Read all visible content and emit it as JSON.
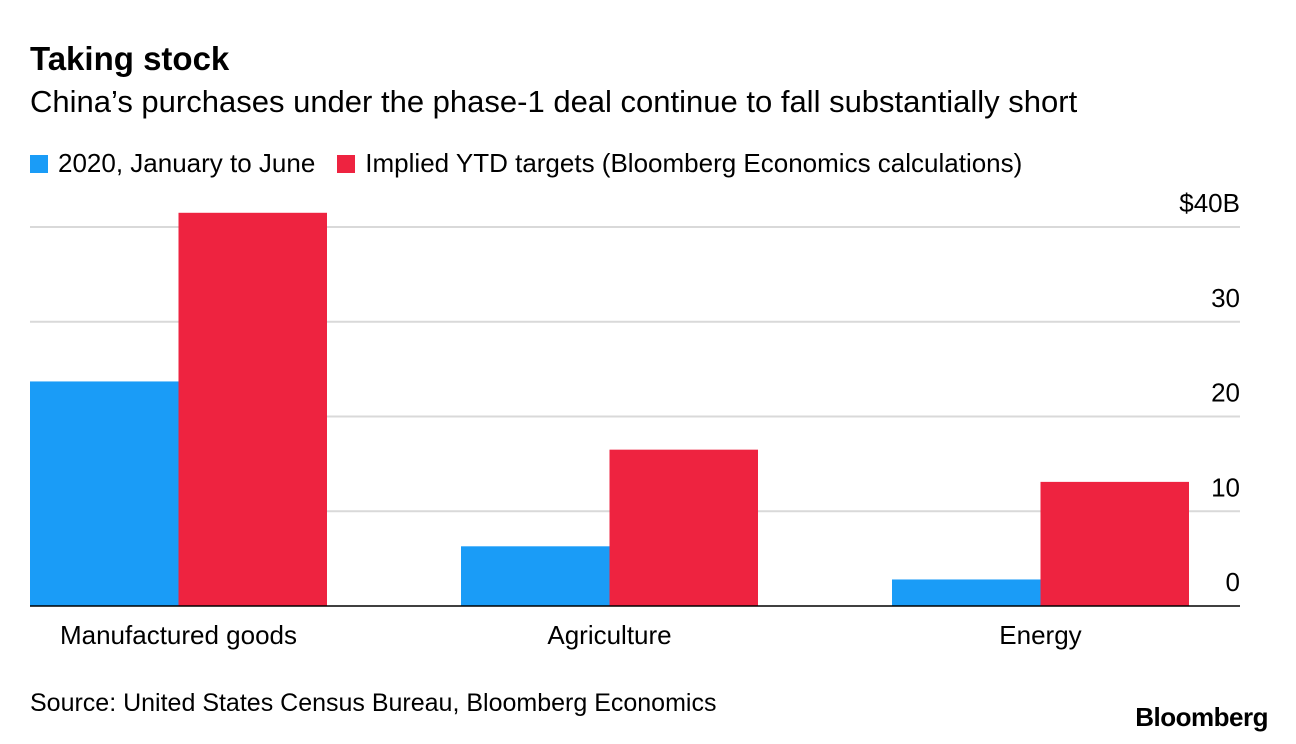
{
  "title": "Taking stock",
  "subtitle": "China’s purchases under the phase-1 deal continue to fall substantially short",
  "source": "Source: United States Census Bureau, Bloomberg Economics",
  "logo": "Bloomberg",
  "chart_data": {
    "type": "bar",
    "categories": [
      "Manufactured goods",
      "Agriculture",
      "Energy"
    ],
    "series": [
      {
        "name": "2020, January to June",
        "color": "#1a9cf7",
        "values": [
          23.7,
          6.3,
          2.8
        ]
      },
      {
        "name": "Implied YTD targets (Bloomberg Economics calculations)",
        "color": "#ee2340",
        "values": [
          41.5,
          16.5,
          13.1
        ]
      }
    ],
    "ylim": [
      0,
      40
    ],
    "yticks": [
      0,
      10,
      20,
      30,
      40
    ],
    "ytick_labels": [
      "0",
      "10",
      "20",
      "30",
      "$40B"
    ],
    "grid": true,
    "legend": "top-left",
    "y_axis_side": "right"
  }
}
